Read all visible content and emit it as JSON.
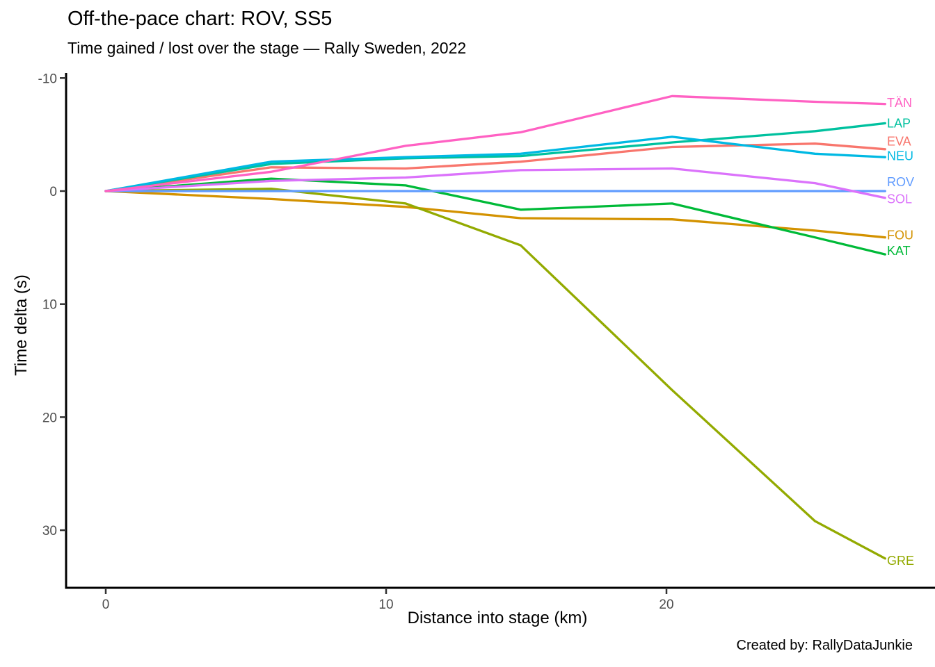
{
  "header": {
    "title": "Off-the-pace chart: ROV, SS5",
    "subtitle": "Time gained / lost over the stage — Rally Sweden, 2022"
  },
  "caption": "Created by: RallyDataJunkie",
  "chart_data": {
    "type": "line",
    "title": "Off-the-pace chart: ROV, SS5",
    "subtitle": "Time gained / lost over the stage — Rally Sweden, 2022",
    "xlabel": "Distance into stage (km)",
    "ylabel": "Time delta (s)",
    "x_ticks": [
      0,
      10,
      20
    ],
    "y_ticks": [
      -10,
      0,
      10,
      20,
      30
    ],
    "y_axis_inverted": true,
    "xlim": [
      -1.4,
      29.6
    ],
    "ylim": [
      -10.5,
      35
    ],
    "grid": false,
    "legend_position": "right-edge-direct-labels",
    "reference_driver": "ROV",
    "x_units": "km",
    "y_units": "s",
    "x": [
      0,
      5.9,
      10.7,
      14.8,
      20.2,
      25.3,
      27.8
    ],
    "series": [
      {
        "name": "EVA",
        "color": "#F8766D",
        "values": [
          0,
          -2.1,
          -2.0,
          -2.6,
          -3.9,
          -4.2,
          -3.7
        ],
        "label_at": -4.4
      },
      {
        "name": "FOU",
        "color": "#D39200",
        "values": [
          0,
          0.7,
          1.4,
          2.4,
          2.5,
          3.5,
          4.1
        ],
        "label_at": 3.9
      },
      {
        "name": "GRE",
        "color": "#93AA00",
        "values": [
          0,
          -0.2,
          1.1,
          4.8,
          17.6,
          29.2,
          32.5
        ],
        "label_at": 32.7
      },
      {
        "name": "KAT",
        "color": "#00BA38",
        "values": [
          0,
          -1.1,
          -0.5,
          1.65,
          1.1,
          4.1,
          5.6
        ],
        "label_at": 5.3
      },
      {
        "name": "LAP",
        "color": "#00C19F",
        "values": [
          0,
          -2.4,
          -2.9,
          -3.1,
          -4.3,
          -5.3,
          -6.0
        ],
        "label_at": -6.0
      },
      {
        "name": "NEU",
        "color": "#00B9E3",
        "values": [
          0,
          -2.6,
          -3.0,
          -3.3,
          -4.8,
          -3.3,
          -3.0
        ],
        "label_at": -3.1
      },
      {
        "name": "ROV",
        "color": "#619CFF",
        "values": [
          0,
          0,
          0,
          0,
          0,
          0,
          0
        ],
        "label_at": -0.8
      },
      {
        "name": "SOL",
        "color": "#DB72FB",
        "values": [
          0,
          -0.9,
          -1.2,
          -1.85,
          -2.0,
          -0.7,
          0.6
        ],
        "label_at": 0.7
      },
      {
        "name": "TÄN",
        "color": "#FF61C3",
        "values": [
          0,
          -1.7,
          -4.0,
          -5.2,
          -8.4,
          -7.9,
          -7.7
        ],
        "label_at": -7.8
      }
    ]
  }
}
